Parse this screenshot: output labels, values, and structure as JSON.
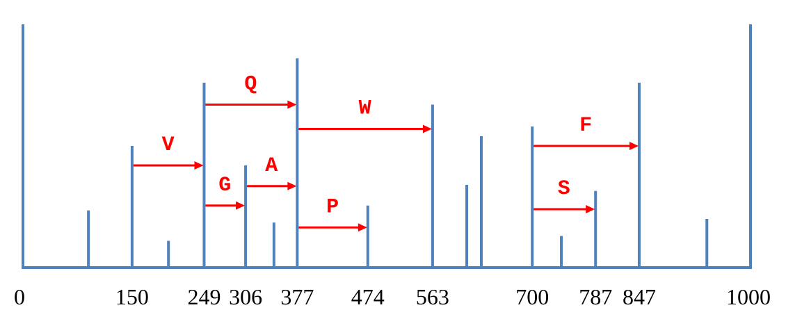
{
  "chart_data": {
    "type": "bar",
    "xlim": [
      0,
      1000
    ],
    "ticks": [
      "0",
      "150",
      "249",
      "306",
      "377",
      "474",
      "563",
      "700",
      "787",
      "847",
      "1000"
    ],
    "tick_values": [
      0,
      150,
      249,
      306,
      377,
      474,
      563,
      700,
      787,
      847,
      1000
    ],
    "peaks": [
      {
        "x": 0,
        "intensity": 100
      },
      {
        "x": 90,
        "intensity": 23.5
      },
      {
        "x": 150,
        "intensity": 50
      },
      {
        "x": 200,
        "intensity": 11
      },
      {
        "x": 249,
        "intensity": 76
      },
      {
        "x": 306,
        "intensity": 42
      },
      {
        "x": 345,
        "intensity": 18.5
      },
      {
        "x": 377,
        "intensity": 86
      },
      {
        "x": 474,
        "intensity": 25.5
      },
      {
        "x": 563,
        "intensity": 67
      },
      {
        "x": 610,
        "intensity": 34
      },
      {
        "x": 630,
        "intensity": 54
      },
      {
        "x": 700,
        "intensity": 58
      },
      {
        "x": 740,
        "intensity": 13
      },
      {
        "x": 787,
        "intensity": 31.5
      },
      {
        "x": 847,
        "intensity": 76
      },
      {
        "x": 940,
        "intensity": 20
      },
      {
        "x": 1000,
        "intensity": 100
      }
    ],
    "transitions": [
      {
        "label": "V",
        "from": 150,
        "to": 249,
        "level": 42
      },
      {
        "label": "G",
        "from": 249,
        "to": 306,
        "level": 25.5
      },
      {
        "label": "A",
        "from": 306,
        "to": 377,
        "level": 33.5
      },
      {
        "label": "Q",
        "from": 249,
        "to": 377,
        "level": 67
      },
      {
        "label": "P",
        "from": 377,
        "to": 474,
        "level": 16.5
      },
      {
        "label": "W",
        "from": 377,
        "to": 563,
        "level": 57
      },
      {
        "label": "F",
        "from": 700,
        "to": 847,
        "level": 50
      },
      {
        "label": "S",
        "from": 700,
        "to": 787,
        "level": 24
      }
    ],
    "colors": {
      "peaks": "#4F81BD",
      "arrows": "#FF0000",
      "ticks": "#000000"
    }
  }
}
